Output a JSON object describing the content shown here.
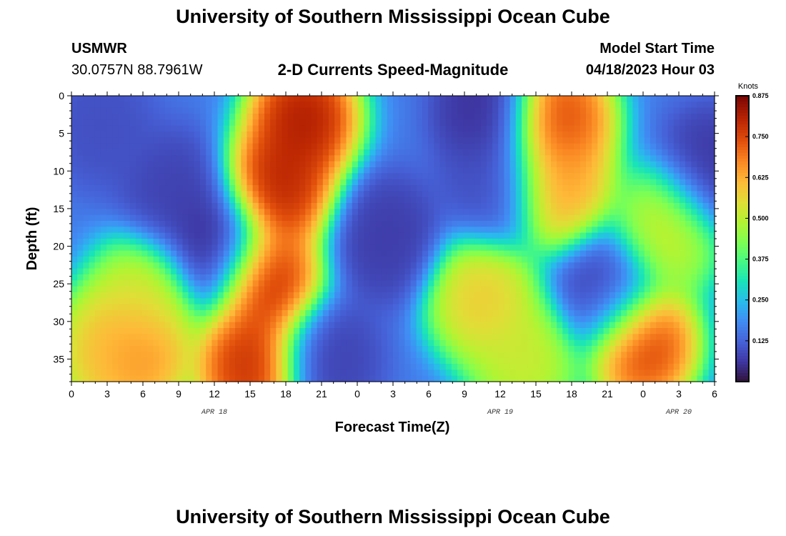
{
  "header": {
    "title": "University of Southern Mississippi Ocean Cube",
    "station": "USMWR",
    "location": "30.0757N  88.7961W",
    "subtitle": "2-D Currents Speed-Magnitude",
    "model_start_label": "Model Start Time",
    "model_start_value": "04/18/2023 Hour 03"
  },
  "footer": {
    "title": "University of Southern Mississippi Ocean Cube"
  },
  "chart_data": {
    "type": "heatmap",
    "xlabel": "Forecast Time(Z)",
    "ylabel": "Depth (ft)",
    "x_range_hours": [
      0,
      54
    ],
    "x_tick_labels": [
      "0",
      "3",
      "6",
      "9",
      "12",
      "15",
      "18",
      "21",
      "0",
      "3",
      "6",
      "9",
      "12",
      "15",
      "18",
      "21",
      "0",
      "3",
      "6"
    ],
    "x_date_labels": [
      {
        "label": "APR 18",
        "at_hour": 12
      },
      {
        "label": "APR 19",
        "at_hour": 36
      },
      {
        "label": "APR 20",
        "at_hour": 51
      }
    ],
    "y_range_ft": [
      0,
      38
    ],
    "y_ticks": [
      0,
      5,
      10,
      15,
      20,
      25,
      30,
      35
    ],
    "colorbar": {
      "title": "Knots",
      "min": 0.0,
      "max": 0.875,
      "ticks": [
        "0.875",
        "0.750",
        "0.625",
        "0.500",
        "0.375",
        "0.250",
        "0.125"
      ],
      "colormap": "turbo"
    },
    "features": [
      {
        "hour": 19.5,
        "depth": 3,
        "speed": 0.88
      },
      {
        "hour": 17.5,
        "depth": 12,
        "speed": 0.86
      },
      {
        "hour": 16.5,
        "depth": 25,
        "speed": 0.84
      },
      {
        "hour": 15,
        "depth": 36,
        "speed": 0.84
      },
      {
        "hour": 5.5,
        "depth": 34,
        "speed": 0.72
      },
      {
        "hour": 6,
        "depth": 27,
        "speed": 0.55
      },
      {
        "hour": 3,
        "depth": 34,
        "speed": 0.62
      },
      {
        "hour": 12,
        "depth": 20,
        "speed": 0.03
      },
      {
        "hour": 8.5,
        "depth": 13,
        "speed": 0.07
      },
      {
        "hour": 2.5,
        "depth": 4,
        "speed": 0.09
      },
      {
        "hour": 21.5,
        "depth": 35,
        "speed": 0.07
      },
      {
        "hour": 26.5,
        "depth": 19,
        "speed": 0.06
      },
      {
        "hour": 34.5,
        "depth": 27,
        "speed": 0.62
      },
      {
        "hour": 38,
        "depth": 35,
        "speed": 0.55
      },
      {
        "hour": 35,
        "depth": 2,
        "speed": 0.04
      },
      {
        "hour": 35.5,
        "depth": 12,
        "speed": 0.09
      },
      {
        "hour": 41,
        "depth": 3,
        "speed": 0.8
      },
      {
        "hour": 41,
        "depth": 12,
        "speed": 0.68
      },
      {
        "hour": 45,
        "depth": 26,
        "speed": 0.07
      },
      {
        "hour": 48,
        "depth": 33,
        "speed": 0.82
      },
      {
        "hour": 50,
        "depth": 18,
        "speed": 0.55
      },
      {
        "hour": 53.7,
        "depth": 10,
        "speed": 0.05
      }
    ]
  }
}
